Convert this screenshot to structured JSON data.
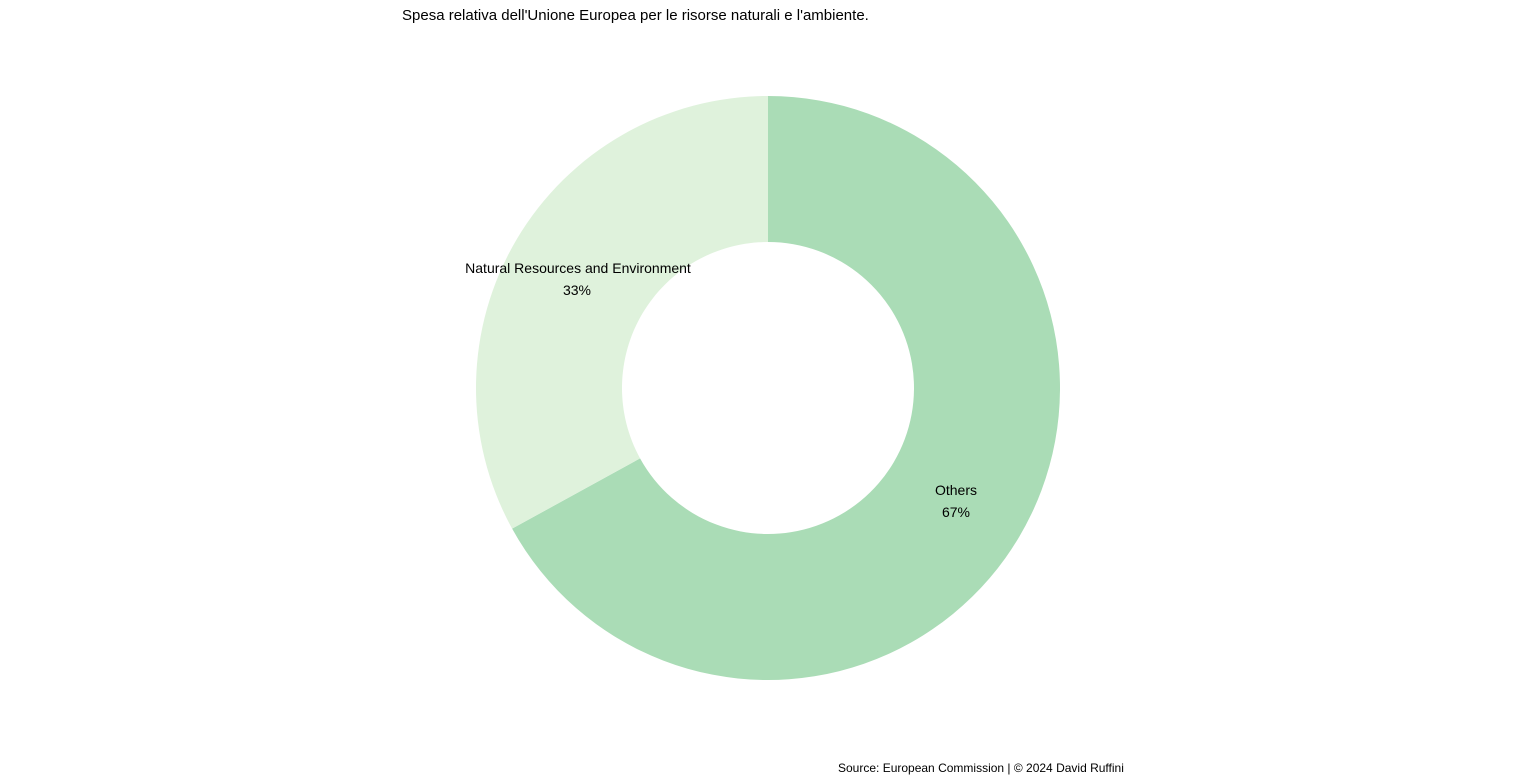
{
  "chart_data": {
    "type": "pie",
    "variant": "donut",
    "title": "Spesa relativa dell'Unione Europea per le risorse naturali e l'ambiente.",
    "categories": [
      "Others",
      "Natural Resources and Environment"
    ],
    "values": [
      67,
      33
    ],
    "labels": [
      {
        "name": "Others",
        "percent": "67%"
      },
      {
        "name": "Natural Resources and Environment",
        "percent": "33%"
      }
    ],
    "colors": [
      "#aadcb6",
      "#dff2dc"
    ],
    "start": "top",
    "direction": "clockwise",
    "legend": "none",
    "source": "Source: European Commission | © 2024 David Ruffini"
  }
}
